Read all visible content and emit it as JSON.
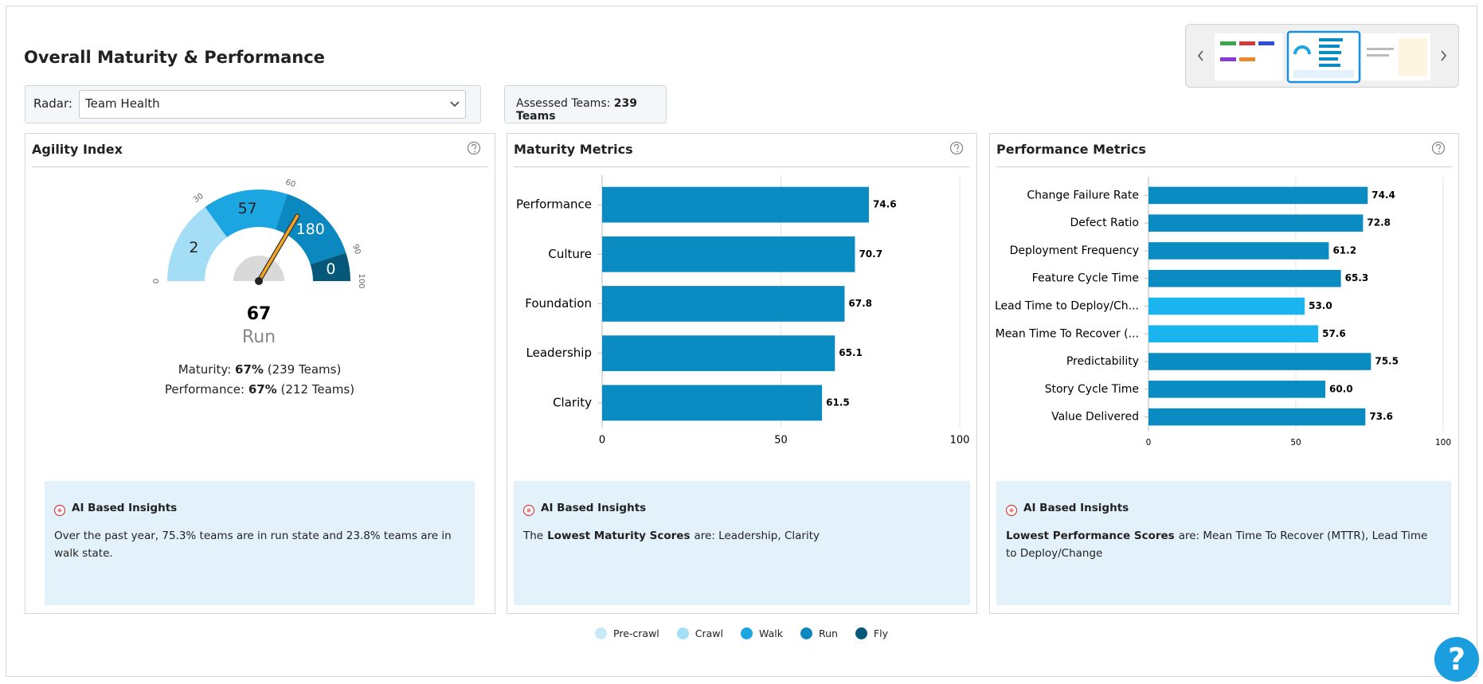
{
  "header": {
    "title": "Overall Maturity & Performance"
  },
  "filters": {
    "radar_label": "Radar:",
    "radar_value": "Team Health",
    "assessed_label": "Assessed Teams:",
    "assessed_value": "239 Teams"
  },
  "panels": [
    {
      "title": "Agility Index",
      "insight_title": "AI Based Insights",
      "insight": [
        {
          "text": "Over the past year, 75.3% teams are in run state and 23.8% teams are in walk state."
        }
      ]
    },
    {
      "title": "Maturity Metrics",
      "insight_title": "AI Based Insights",
      "insight": [
        {
          "text": "The"
        },
        {
          "text": "Lowest Maturity Scores",
          "bold": true
        },
        {
          "text": "are: Leadership, Clarity"
        }
      ]
    },
    {
      "title": "Performance Metrics",
      "insight_title": "AI Based Insights",
      "insight": [
        {
          "text": "Lowest Performance Scores",
          "bold": true
        },
        {
          "text": "are: Mean Time To Recover (MTTR), Lead Time to Deploy/Change"
        }
      ]
    }
  ],
  "agility_summary": [
    {
      "label": "Maturity:",
      "value": "67%",
      "detail": "(239 Teams)"
    },
    {
      "label": "Performance:",
      "value": "67%",
      "detail": "(212 Teams)"
    }
  ],
  "chart_data": [
    {
      "type": "gauge",
      "values": [
        2,
        57,
        180,
        0
      ],
      "colors": [
        "#a3ddf6",
        "#1ba6e2",
        "#0a88bf",
        "#06587a"
      ],
      "xlim": [
        0,
        100
      ],
      "xticks": [
        0,
        30,
        60,
        90,
        100
      ],
      "value": 67,
      "label": "Run"
    },
    {
      "type": "hbar",
      "categories": [
        "Performance",
        "Culture",
        "Foundation",
        "Leadership",
        "Clarity"
      ],
      "values": [
        74.6,
        70.7,
        67.8,
        65.1,
        61.5
      ],
      "color": "#0a8bc2",
      "xlim": [
        0,
        100
      ],
      "xticks": [
        0,
        50,
        100
      ],
      "grid": true
    },
    {
      "type": "hbar",
      "categories": [
        "Change Failure Rate",
        "Defect Ratio",
        "Deployment Frequency",
        "Feature Cycle Time",
        "Lead Time to Deploy/Ch...",
        "Mean Time To Recover (...",
        "Predictability",
        "Story Cycle Time",
        "Value Delivered"
      ],
      "values": [
        74.4,
        72.8,
        61.2,
        65.3,
        53,
        57.6,
        75.5,
        60,
        73.6
      ],
      "value_labels": [
        "74.4",
        "72.8",
        "61.2",
        "65.3",
        "53.0",
        "57.6",
        "75.5",
        "60.0",
        "73.6"
      ],
      "colors": [
        "#0a8bc2",
        "#0a8bc2",
        "#0a8bc2",
        "#0a8bc2",
        "#1ab4ef",
        "#1ab4ef",
        "#0a8bc2",
        "#0a8bc2",
        "#0a8bc2"
      ],
      "xlim": [
        0,
        100
      ],
      "xticks": [
        0,
        50,
        100
      ],
      "grid": true
    }
  ],
  "legend": [
    {
      "name": "Pre-crawl",
      "color": "#c8eaf8"
    },
    {
      "name": "Crawl",
      "color": "#a3ddf6"
    },
    {
      "name": "Walk",
      "color": "#1ba6e2"
    },
    {
      "name": "Run",
      "color": "#0a88bf"
    },
    {
      "name": "Fly",
      "color": "#06587a"
    }
  ],
  "help_button": "?"
}
